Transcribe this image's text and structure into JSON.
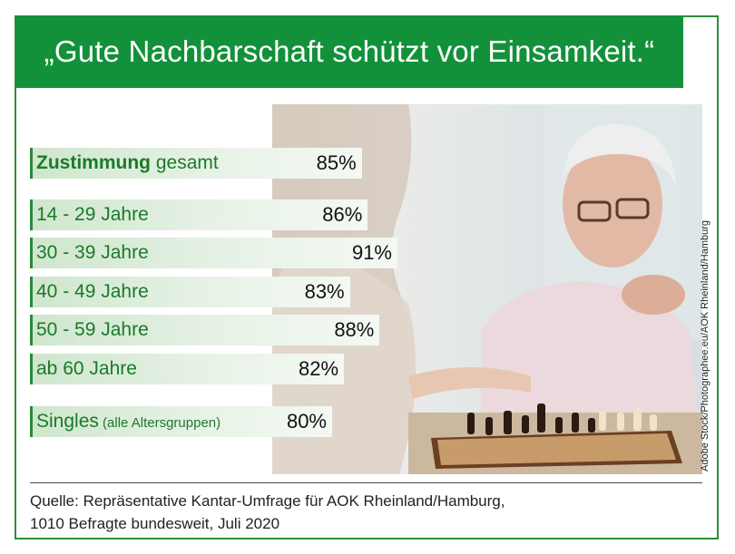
{
  "title": "„Gute Nachbarschaft schützt vor Einsamkeit.“",
  "photo_credit": "Adobe Stock/Photographee.eu/AOK Rheinland/Hamburg",
  "chart_data": {
    "type": "bar",
    "orientation": "horizontal",
    "total": {
      "label_bold": "Zustimmung",
      "label_rest": " gesamt",
      "value": 85,
      "display": "85%"
    },
    "categories": [
      "14 - 29 Jahre",
      "30 - 39 Jahre",
      "40 - 49 Jahre",
      "50 - 59 Jahre",
      "ab 60 Jahre"
    ],
    "values": [
      86,
      91,
      83,
      88,
      82
    ],
    "displays": [
      "86%",
      "91%",
      "83%",
      "88%",
      "82%"
    ],
    "singles": {
      "label_main": "Singles",
      "label_sub": " (alle Altersgruppen)",
      "value": 80,
      "display": "80%"
    }
  },
  "source_line1": "Quelle: Repräsentative Kantar-Umfrage für AOK Rheinland/Hamburg,",
  "source_line2": "1010 Befragte bundesweit, Juli 2020",
  "colors": {
    "header": "#12913a",
    "label": "#1a7a2a",
    "bar_start": "#cfe6cd"
  }
}
